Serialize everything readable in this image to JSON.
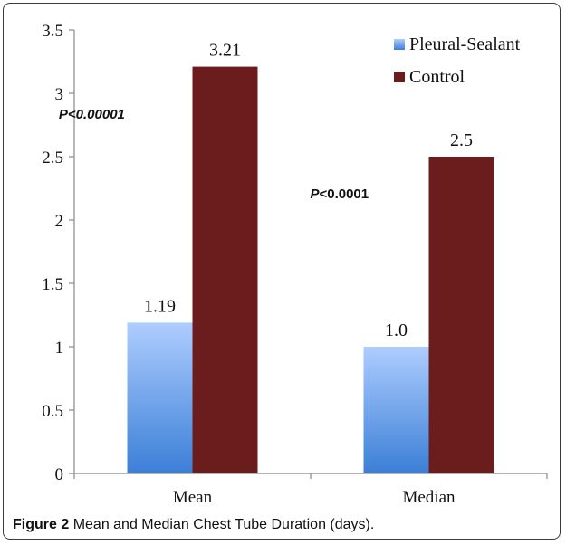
{
  "chart_data": {
    "type": "bar",
    "categories": [
      "Mean",
      "Median"
    ],
    "series": [
      {
        "name": "Pleural-Sealant",
        "values": [
          1.19,
          1.0
        ],
        "labels": [
          "1.19",
          "1.0"
        ]
      },
      {
        "name": "Control",
        "values": [
          3.21,
          2.5
        ],
        "labels": [
          "3.21",
          "2.5"
        ]
      }
    ],
    "ylim": [
      0,
      3.5
    ],
    "yticks": [
      "0",
      "0.5",
      "1",
      "1.5",
      "2",
      "2.5",
      "3",
      "3.5"
    ],
    "legend_position": "top-right",
    "grid": false,
    "annotations": [
      {
        "category": "Mean",
        "text": "P<0.00001",
        "style": "bold-italic"
      },
      {
        "category": "Median",
        "text": "P<0.0001",
        "style": "bold, italic P"
      }
    ],
    "colors": {
      "Pleural-Sealant": [
        "#aecdff",
        "#3b7fd6"
      ],
      "Control": "#6b1d1d"
    }
  },
  "caption": {
    "label": "Figure 2",
    "text": "Mean and Median Chest Tube Duration (days)."
  }
}
